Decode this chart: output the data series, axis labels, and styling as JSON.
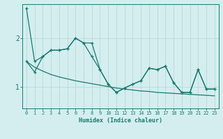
{
  "xlabel": "Humidex (Indice chaleur)",
  "bg_color": "#d4eef0",
  "line_color": "#1a7a6e",
  "grid_color": "#b8d8d8",
  "x_min": -0.5,
  "x_max": 23.5,
  "y_min": 0.55,
  "y_max": 2.7,
  "yticks": [
    1,
    2
  ],
  "xticks": [
    0,
    1,
    2,
    3,
    4,
    5,
    6,
    7,
    8,
    9,
    10,
    11,
    12,
    13,
    14,
    15,
    16,
    17,
    18,
    19,
    20,
    21,
    22,
    23
  ],
  "line1_x": [
    0,
    1,
    2,
    3,
    4,
    5,
    6,
    7,
    8,
    9,
    10,
    11,
    12,
    13,
    14,
    15,
    16,
    17,
    18,
    19,
    20,
    21,
    22,
    23
  ],
  "line1_y": [
    2.62,
    1.52,
    1.62,
    1.75,
    1.75,
    1.78,
    2.0,
    1.9,
    1.9,
    1.35,
    1.05,
    0.88,
    0.97,
    1.05,
    1.12,
    1.38,
    1.35,
    1.42,
    1.08,
    0.88,
    0.88,
    1.35,
    0.95,
    0.95
  ],
  "line2_x": [
    0,
    1,
    2,
    3,
    4,
    5,
    6,
    7,
    8,
    9,
    10,
    11,
    12,
    13,
    14,
    15,
    16,
    17,
    18,
    19,
    20,
    21,
    22,
    23
  ],
  "line2_y": [
    1.52,
    1.3,
    1.62,
    1.75,
    1.75,
    1.78,
    2.0,
    1.9,
    1.62,
    1.35,
    1.05,
    0.88,
    0.97,
    1.05,
    1.12,
    1.38,
    1.35,
    1.42,
    1.08,
    0.88,
    0.88,
    1.35,
    0.95,
    0.95
  ],
  "line3_x": [
    0,
    1,
    2,
    3,
    4,
    5,
    6,
    7,
    8,
    9,
    10,
    11,
    12,
    13,
    14,
    15,
    16,
    17,
    18,
    19,
    20,
    21,
    22,
    23
  ],
  "line3_y": [
    1.52,
    1.4,
    1.32,
    1.25,
    1.2,
    1.16,
    1.12,
    1.09,
    1.06,
    1.03,
    1.0,
    0.97,
    0.95,
    0.93,
    0.91,
    0.9,
    0.88,
    0.87,
    0.86,
    0.85,
    0.84,
    0.83,
    0.82,
    0.81
  ]
}
